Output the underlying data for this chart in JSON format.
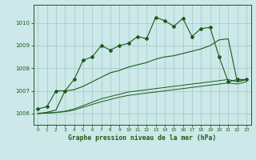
{
  "title": "Graphe pression niveau de la mer (hPa)",
  "bg_color": "#cce8e8",
  "grid_color": "#aacccc",
  "line_color": "#1a5c1a",
  "ylim": [
    1005.5,
    1010.8
  ],
  "xlim": [
    -0.5,
    23.5
  ],
  "yticks": [
    1006,
    1007,
    1008,
    1009,
    1010
  ],
  "xticks": [
    0,
    1,
    2,
    3,
    4,
    5,
    6,
    7,
    8,
    9,
    10,
    11,
    12,
    13,
    14,
    15,
    16,
    17,
    18,
    19,
    20,
    21,
    22,
    23
  ],
  "series1": [
    1006.2,
    1006.3,
    1007.0,
    1007.0,
    1007.5,
    1008.35,
    1008.5,
    1009.0,
    1008.8,
    1009.0,
    1009.1,
    1009.4,
    1009.3,
    1010.25,
    1010.1,
    1009.85,
    1010.2,
    1009.4,
    1009.75,
    1009.8,
    1008.5,
    1007.4,
    1007.5,
    1007.5
  ],
  "series2": [
    1006.0,
    1006.05,
    1006.15,
    1007.0,
    1007.05,
    1007.2,
    1007.4,
    1007.6,
    1007.8,
    1007.9,
    1008.05,
    1008.15,
    1008.25,
    1008.4,
    1008.5,
    1008.55,
    1008.65,
    1008.75,
    1008.85,
    1009.0,
    1009.25,
    1009.3,
    1007.4,
    1007.5
  ],
  "series3": [
    1006.0,
    1006.02,
    1006.05,
    1006.1,
    1006.2,
    1006.35,
    1006.5,
    1006.65,
    1006.75,
    1006.85,
    1006.95,
    1007.0,
    1007.05,
    1007.1,
    1007.15,
    1007.2,
    1007.25,
    1007.3,
    1007.35,
    1007.4,
    1007.45,
    1007.5,
    1007.4,
    1007.5
  ],
  "series4": [
    1006.0,
    1006.02,
    1006.04,
    1006.08,
    1006.15,
    1006.28,
    1006.4,
    1006.52,
    1006.62,
    1006.72,
    1006.8,
    1006.85,
    1006.9,
    1006.95,
    1007.0,
    1007.05,
    1007.1,
    1007.15,
    1007.2,
    1007.25,
    1007.3,
    1007.35,
    1007.3,
    1007.4
  ]
}
